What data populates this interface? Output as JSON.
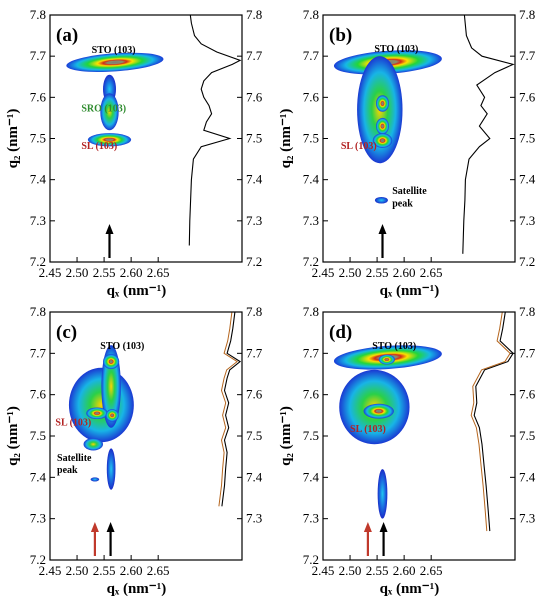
{
  "chart_data": [
    {
      "type": "heatmap",
      "panel_label": "(a)",
      "xlabel": "qₓ (nm⁻¹)",
      "ylabel": "q₂ (nm⁻¹)",
      "xlim": [
        2.45,
        2.72
      ],
      "ylim": [
        7.2,
        7.8
      ],
      "xticks": [
        "2.45",
        "2.50",
        "2.55",
        "2.60",
        "2.65"
      ],
      "yticks": [
        "7.2",
        "7.3",
        "7.4",
        "7.5",
        "7.6",
        "7.7",
        "7.8"
      ],
      "right_yticks": [
        "7.2",
        "7.3",
        "7.4",
        "7.5",
        "7.6",
        "7.7",
        "7.8"
      ],
      "blobs": [
        {
          "x": 2.57,
          "y": 7.685,
          "rx": 0.09,
          "ry": 0.022,
          "intensity": 1.0,
          "angle": -4
        },
        {
          "x": 2.56,
          "y": 7.62,
          "rx": 0.012,
          "ry": 0.035,
          "intensity": 0.35
        },
        {
          "x": 2.56,
          "y": 7.565,
          "rx": 0.017,
          "ry": 0.045,
          "intensity": 0.75
        },
        {
          "x": 2.56,
          "y": 7.497,
          "rx": 0.04,
          "ry": 0.016,
          "intensity": 1.0
        }
      ],
      "annotations": [
        {
          "text": "STO (103)",
          "x": 2.527,
          "y": 7.708,
          "color": "#000000"
        },
        {
          "text": "SRO (103)",
          "x": 2.508,
          "y": 7.565,
          "color": "#2e8b2e"
        },
        {
          "text": "SL (103)",
          "x": 2.508,
          "y": 7.475,
          "color": "#b22222"
        }
      ],
      "arrows": [
        {
          "x": 2.56,
          "color": "#000000"
        }
      ],
      "profile": {
        "line_color": "#000000",
        "y": [
          7.24,
          7.3,
          7.4,
          7.45,
          7.48,
          7.5,
          7.52,
          7.54,
          7.56,
          7.58,
          7.6,
          7.62,
          7.64,
          7.66,
          7.68,
          7.69,
          7.71,
          7.73,
          7.75,
          7.78,
          7.8
        ],
        "v": [
          0.02,
          0.03,
          0.06,
          0.1,
          0.25,
          0.8,
          0.3,
          0.35,
          0.45,
          0.4,
          0.3,
          0.25,
          0.3,
          0.45,
          0.85,
          1.0,
          0.55,
          0.25,
          0.12,
          0.06,
          0.04
        ]
      }
    },
    {
      "type": "heatmap",
      "panel_label": "(b)",
      "xlabel": "qₓ (nm⁻¹)",
      "ylabel": "q₂ (nm⁻¹)",
      "xlim": [
        2.45,
        2.72
      ],
      "ylim": [
        7.2,
        7.8
      ],
      "xticks": [
        "2.45",
        "2.50",
        "2.55",
        "2.60",
        "2.65"
      ],
      "yticks": [
        "7.2",
        "7.3",
        "7.4",
        "7.5",
        "7.6",
        "7.7",
        "7.8"
      ],
      "right_yticks": [
        "7.2",
        "7.3",
        "7.4",
        "7.5",
        "7.6",
        "7.7",
        "7.8"
      ],
      "blobs": [
        {
          "x": 2.57,
          "y": 7.685,
          "rx": 0.1,
          "ry": 0.028,
          "intensity": 1.0,
          "angle": -4
        },
        {
          "x": 2.555,
          "y": 7.57,
          "rx": 0.042,
          "ry": 0.13,
          "intensity": 0.6
        },
        {
          "x": 2.56,
          "y": 7.585,
          "rx": 0.012,
          "ry": 0.02,
          "intensity": 0.9
        },
        {
          "x": 2.56,
          "y": 7.53,
          "rx": 0.012,
          "ry": 0.02,
          "intensity": 0.85
        },
        {
          "x": 2.56,
          "y": 7.495,
          "rx": 0.018,
          "ry": 0.018,
          "intensity": 1.0
        },
        {
          "x": 2.558,
          "y": 7.35,
          "rx": 0.012,
          "ry": 0.008,
          "intensity": 0.18
        }
      ],
      "annotations": [
        {
          "text": "STO (103)",
          "x": 2.545,
          "y": 7.71,
          "color": "#000000"
        },
        {
          "text": "SL (103)",
          "x": 2.483,
          "y": 7.475,
          "color": "#b22222"
        },
        {
          "text": "Satellite",
          "x": 2.578,
          "y": 7.365,
          "color": "#000000"
        },
        {
          "text": "peak",
          "x": 2.578,
          "y": 7.335,
          "color": "#000000"
        }
      ],
      "arrows": [
        {
          "x": 2.56,
          "color": "#000000"
        }
      ],
      "profile": {
        "line_color": "#000000",
        "y": [
          7.22,
          7.3,
          7.35,
          7.4,
          7.45,
          7.48,
          7.5,
          7.53,
          7.56,
          7.58,
          7.6,
          7.63,
          7.66,
          7.68,
          7.7,
          7.72,
          7.75,
          7.8
        ],
        "v": [
          0.03,
          0.05,
          0.07,
          0.08,
          0.15,
          0.35,
          0.55,
          0.35,
          0.5,
          0.38,
          0.45,
          0.3,
          0.65,
          1.0,
          0.4,
          0.2,
          0.1,
          0.06
        ]
      }
    },
    {
      "type": "heatmap",
      "panel_label": "(c)",
      "xlabel": "qₓ (nm⁻¹)",
      "ylabel": "q₂ (nm⁻¹)",
      "xlim": [
        2.45,
        2.72
      ],
      "ylim": [
        7.2,
        7.8
      ],
      "xticks": [
        "2.45",
        "2.50",
        "2.55",
        "2.60",
        "2.65"
      ],
      "yticks": [
        "7.2",
        "7.3",
        "7.4",
        "7.5",
        "7.6",
        "7.7",
        "7.8"
      ],
      "right_yticks": [
        "7.3",
        "7.4",
        "7.5",
        "7.6",
        "7.7",
        "7.8"
      ],
      "blobs": [
        {
          "x": 2.545,
          "y": 7.575,
          "rx": 0.06,
          "ry": 0.09,
          "intensity": 0.6
        },
        {
          "x": 2.563,
          "y": 7.62,
          "rx": 0.018,
          "ry": 0.1,
          "intensity": 0.7
        },
        {
          "x": 2.563,
          "y": 7.68,
          "rx": 0.015,
          "ry": 0.018,
          "intensity": 1.0
        },
        {
          "x": 2.537,
          "y": 7.555,
          "rx": 0.02,
          "ry": 0.014,
          "intensity": 1.0
        },
        {
          "x": 2.565,
          "y": 7.55,
          "rx": 0.012,
          "ry": 0.015,
          "intensity": 0.95
        },
        {
          "x": 2.53,
          "y": 7.48,
          "rx": 0.018,
          "ry": 0.015,
          "intensity": 0.45
        },
        {
          "x": 2.563,
          "y": 7.42,
          "rx": 0.008,
          "ry": 0.05,
          "intensity": 0.35
        },
        {
          "x": 2.533,
          "y": 7.395,
          "rx": 0.008,
          "ry": 0.005,
          "intensity": 0.18
        }
      ],
      "annotations": [
        {
          "text": "STO (103)",
          "x": 2.543,
          "y": 7.71,
          "color": "#000000"
        },
        {
          "text": "SL (103)",
          "x": 2.46,
          "y": 7.525,
          "color": "#b22222"
        },
        {
          "text": "Satellite",
          "x": 2.463,
          "y": 7.44,
          "color": "#000000"
        },
        {
          "text": "peak",
          "x": 2.463,
          "y": 7.41,
          "color": "#000000"
        }
      ],
      "arrows": [
        {
          "x": 2.533,
          "color": "#c0392b"
        },
        {
          "x": 2.562,
          "color": "#000000"
        }
      ],
      "profile": {
        "line_color": "#000000",
        "fit_color": "#b5651d",
        "y": [
          7.33,
          7.38,
          7.42,
          7.46,
          7.49,
          7.52,
          7.55,
          7.58,
          7.61,
          7.64,
          7.66,
          7.68,
          7.7,
          7.73,
          7.76,
          7.8
        ],
        "v": [
          0.65,
          0.7,
          0.72,
          0.75,
          0.7,
          0.78,
          0.72,
          0.78,
          0.7,
          0.75,
          0.8,
          1.0,
          0.75,
          0.82,
          0.86,
          0.9
        ]
      }
    },
    {
      "type": "heatmap",
      "panel_label": "(d)",
      "xlabel": "qₓ (nm⁻¹)",
      "ylabel": "q₂ (nm⁻¹)",
      "xlim": [
        2.45,
        2.72
      ],
      "ylim": [
        7.2,
        7.8
      ],
      "xticks": [
        "2.45",
        "2.50",
        "2.55",
        "2.60",
        "2.65"
      ],
      "yticks": [
        "7.2",
        "7.3",
        "7.4",
        "7.5",
        "7.6",
        "7.7",
        "7.8"
      ],
      "right_yticks": [
        "7.3",
        "7.4",
        "7.5",
        "7.6",
        "7.7",
        "7.8"
      ],
      "blobs": [
        {
          "x": 2.57,
          "y": 7.69,
          "rx": 0.1,
          "ry": 0.028,
          "intensity": 0.85,
          "angle": -4
        },
        {
          "x": 2.545,
          "y": 7.57,
          "rx": 0.065,
          "ry": 0.09,
          "intensity": 0.55
        },
        {
          "x": 2.553,
          "y": 7.56,
          "rx": 0.028,
          "ry": 0.018,
          "intensity": 1.0
        },
        {
          "x": 2.568,
          "y": 7.685,
          "rx": 0.015,
          "ry": 0.012,
          "intensity": 1.0
        },
        {
          "x": 2.56,
          "y": 7.36,
          "rx": 0.009,
          "ry": 0.06,
          "intensity": 0.3
        }
      ],
      "annotations": [
        {
          "text": "STO (103)",
          "x": 2.541,
          "y": 7.71,
          "color": "#000000"
        },
        {
          "text": "SL (103)",
          "x": 2.5,
          "y": 7.51,
          "color": "#b22222"
        }
      ],
      "arrows": [
        {
          "x": 2.533,
          "color": "#c0392b"
        },
        {
          "x": 2.562,
          "color": "#000000"
        }
      ],
      "profile": {
        "line_color": "#000000",
        "fit_color": "#b5651d",
        "y": [
          7.27,
          7.32,
          7.38,
          7.43,
          7.48,
          7.52,
          7.55,
          7.58,
          7.62,
          7.66,
          7.68,
          7.7,
          7.73,
          7.76,
          7.8
        ],
        "v": [
          0.55,
          0.52,
          0.48,
          0.44,
          0.4,
          0.35,
          0.25,
          0.3,
          0.28,
          0.45,
          0.9,
          1.0,
          0.75,
          0.8,
          0.85
        ]
      }
    }
  ]
}
